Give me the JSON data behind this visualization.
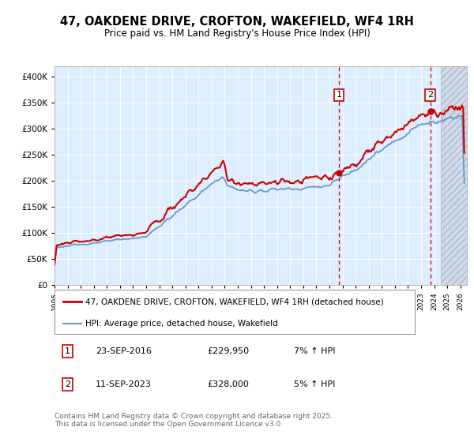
{
  "title": "47, OAKDENE DRIVE, CROFTON, WAKEFIELD, WF4 1RH",
  "subtitle": "Price paid vs. HM Land Registry's House Price Index (HPI)",
  "ylabel_ticks": [
    "£0",
    "£50K",
    "£100K",
    "£150K",
    "£200K",
    "£250K",
    "£300K",
    "£350K",
    "£400K"
  ],
  "ytick_values": [
    0,
    50000,
    100000,
    150000,
    200000,
    250000,
    300000,
    350000,
    400000
  ],
  "ylim": [
    0,
    420000
  ],
  "xlim_start": 1995.0,
  "xlim_end": 2026.5,
  "sale1_x": 2016.73,
  "sale2_x": 2023.7,
  "legend_line1": "47, OAKDENE DRIVE, CROFTON, WAKEFIELD, WF4 1RH (detached house)",
  "legend_line2": "HPI: Average price, detached house, Wakefield",
  "footer": "Contains HM Land Registry data © Crown copyright and database right 2025.\nThis data is licensed under the Open Government Licence v3.0.",
  "line_color_red": "#cc0000",
  "line_color_blue": "#6699cc",
  "bg_chart": "#ddeeff",
  "hatch_start": 2024.5
}
